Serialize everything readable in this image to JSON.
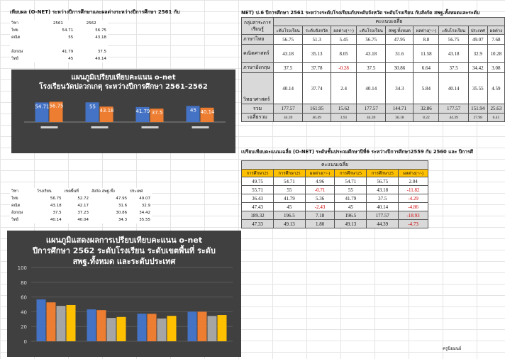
{
  "sheet": {
    "title_left": "เทียบผล (O-NET) ระหว่างปีการศึกษาและผลต่างระหว่างปีการศึกษา 2561 กับ",
    "title_right": "NET)  ป.6  ปีการศึกษา  2561 ระหว่างระดับโรงเรียนกับระดับจังหวัด ระดับโรงเรียน กับสังกัด สพฐ.ทั้งหมดและระดับ",
    "title_mid": "เปรียบเทียบคะแนนเฉลี่ย  (O-NET) ระดับชั้นประถมศึกษาปีที่6 ระหว่างปีการศึกษา2559 กับ 2560 และ ปีการศึ",
    "footer_note": "ครูนิยมนย์"
  },
  "table1": {
    "header": [
      "วิชา",
      "2561",
      "2562"
    ],
    "rows": [
      [
        "ไทย",
        "54.71",
        "56.75"
      ],
      [
        "คณิต",
        "55",
        "43.18"
      ],
      [
        "",
        "",
        ""
      ],
      [
        "อังกฤษ",
        "41.79",
        "37.5"
      ],
      [
        "วิทย์",
        "45",
        "40.14"
      ]
    ]
  },
  "chart1": {
    "title_line1": "แผนภูมิเปรียบเทียบคะแนน o-net",
    "title_line2": "โรงเรียนวัดปลวกเกตุ ระหว่างปีการศึกษา 2561-2562",
    "colors": {
      "s1": "#4472c4",
      "s2": "#ed7d31",
      "bg": "#404040"
    },
    "chart_data": {
      "type": "bar",
      "categories": [
        "ไทย",
        "คณิต",
        "อังกฤษ",
        "วิทย์"
      ],
      "series": [
        {
          "name": "2561",
          "values": [
            54.71,
            55,
            41.79,
            45
          ]
        },
        {
          "name": "2562",
          "values": [
            56.75,
            43.18,
            37.5,
            40.14
          ]
        }
      ],
      "data_labels": [
        [
          "54.71",
          "56.75"
        ],
        [
          "55",
          "43.18"
        ],
        [
          "41.79",
          "37.5"
        ],
        [
          "45",
          "40.14"
        ]
      ],
      "ylim": [
        0,
        100
      ]
    }
  },
  "table2": {
    "header": [
      "วิชา",
      "โรงเรียน",
      "เขตพื้นที่",
      "สังกัด สพฐ.ทั้ง",
      "ประเทศ"
    ],
    "rows": [
      [
        "ไทย",
        "56.75",
        "52.72",
        "47.95",
        "49.07"
      ],
      [
        "คณิต",
        "43.18",
        "42.17",
        "31.6",
        "32.9"
      ],
      [
        "อังกฤษ",
        "37.5",
        "37.23",
        "30.86",
        "34.42"
      ],
      [
        "วิทย์",
        "40.14",
        "40.04",
        "34.3",
        "35.55"
      ]
    ]
  },
  "chart2": {
    "title_line1": "แผนภูมิแสดงผลการเปรียบเทียบคะแนน o-net",
    "title_line2": "ปีการศึกษา 2562 ระดับโรงเรียน ระดับเขตพื้นที่ ระดับ",
    "title_line3": "สพฐ.ทั้งหมด และระดับประเทศ",
    "colors": {
      "s1": "#4472c4",
      "s2": "#ed7d31",
      "s3": "#a5a5a5",
      "s4": "#ffc000",
      "bg": "#404040"
    },
    "yticks": [
      "100",
      "80",
      "60",
      "40",
      "20",
      "0"
    ],
    "chart_data": {
      "type": "bar",
      "categories": [
        "ไทย",
        "คณิต",
        "อังกฤษ",
        "วิทย์"
      ],
      "series": [
        {
          "name": "โรงเรียน",
          "values": [
            56.75,
            43.18,
            37.5,
            40.14
          ]
        },
        {
          "name": "เขตพื้นที่",
          "values": [
            52.72,
            42.17,
            37.23,
            40.04
          ]
        },
        {
          "name": "สังกัด สพฐ.ทั้ง",
          "values": [
            47.95,
            31.6,
            30.86,
            34.3
          ]
        },
        {
          "name": "ประเทศ",
          "values": [
            49.07,
            32.9,
            34.42,
            35.55
          ]
        }
      ],
      "ylim": [
        0,
        100
      ]
    }
  },
  "table3": {
    "h1": "กลุ่มสาระการเรียนรู้",
    "h2": "คะแนนเฉลี่ย",
    "subheaders": [
      "ะดับโรงเรียน",
      "ระดับจังหวัด",
      "ผลต่าง(+/-)",
      "ะดับโรงเรียน",
      "สพฐ.ทั้งหมด",
      "ผลต่าง(+/-)",
      "ะดับโรงเรียน",
      "ประเทศ",
      "ผลต่าง"
    ],
    "rows": [
      {
        "subject": "ภาษาไทย",
        "vals": [
          "56.75",
          "51.3",
          "5.45",
          "56.75",
          "47.95",
          "8.8",
          "56.75",
          "49.07",
          "7.68"
        ]
      },
      {
        "subject": "คณิตศาสตร์",
        "vals": [
          "43.18",
          "35.13",
          "8.05",
          "43.18",
          "31.6",
          "11.58",
          "43.18",
          "32.9",
          "10.28"
        ]
      },
      {
        "subject": "ภาษาอังกฤษ",
        "vals": [
          "37.5",
          "37.78",
          "-0.28",
          "37.5",
          "30.86",
          "6.64",
          "37.5",
          "34.42",
          "3.08"
        ]
      },
      {
        "subject": "วิทยาศาสตร์",
        "vals": [
          "40.14",
          "37.74",
          "2.4",
          "40.14",
          "34.3",
          "5.84",
          "40.14",
          "35.55",
          "4.59"
        ]
      }
    ],
    "total": {
      "label": "รวม",
      "vals": [
        "177.57",
        "161.95",
        "15.62",
        "177.57",
        "144.71",
        "32.86",
        "177.57",
        "151.94",
        "25.63"
      ]
    },
    "avg": {
      "label": "เฉลี่ยรวม",
      "vals": [
        "44.39",
        "40.49",
        "3.91",
        "44.39",
        "36.18",
        "8.22",
        "44.39",
        "37.98",
        "6.41"
      ]
    }
  },
  "table4": {
    "h1": "คะแนนเฉลี่ย",
    "subheaders": [
      "การศึกษา25",
      "การศึกษา25",
      "ผลต่าง(+/-)",
      "การศึกษา25",
      "การศึกษา25",
      "ผลต่าง(+/-)"
    ],
    "rows": [
      [
        "49.75",
        "54.71",
        "4.96",
        "54.71",
        "56.75",
        "2.04"
      ],
      [
        "55.71",
        "55",
        "-0.71",
        "55",
        "43.18",
        "-11.82"
      ],
      [
        "36.43",
        "41.79",
        "5.36",
        "41.79",
        "37.5",
        "-4.29"
      ],
      [
        "47.43",
        "45",
        "-2.43",
        "45",
        "40.14",
        "-4.86"
      ],
      [
        "189.32",
        "196.5",
        "7.18",
        "196.5",
        "177.57",
        "-18.93"
      ],
      [
        "47.33",
        "49.13",
        "1.80",
        "49.13",
        "44.39",
        "-4.73"
      ]
    ]
  }
}
